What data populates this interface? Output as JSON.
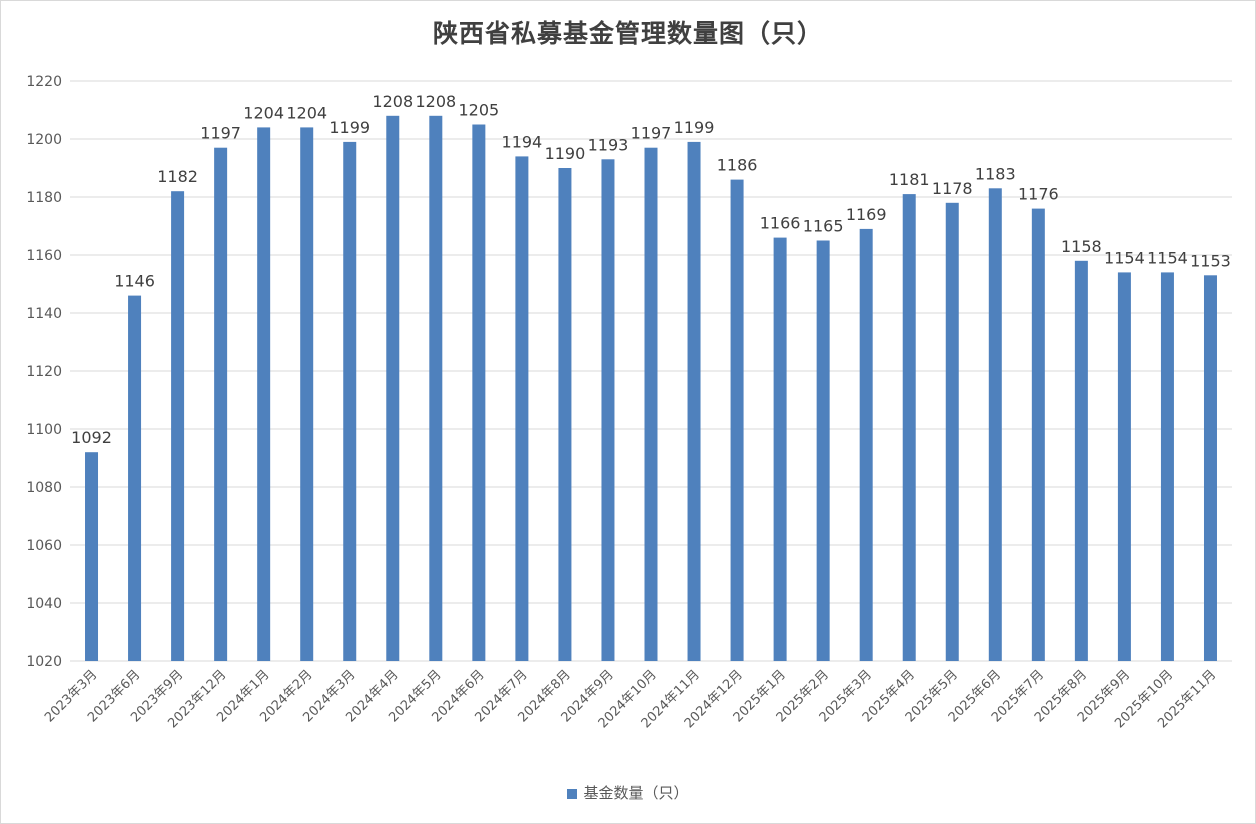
{
  "chart_data": {
    "type": "bar",
    "title": "陕西省私募基金管理数量图（只）",
    "categories": [
      "2023年3月",
      "2023年6月",
      "2023年9月",
      "2023年12月",
      "2024年1月",
      "2024年2月",
      "2024年3月",
      "2024年4月",
      "2024年5月",
      "2024年6月",
      "2024年7月",
      "2024年8月",
      "2024年9月",
      "2024年10月",
      "2024年11月",
      "2024年12月",
      "2025年1月",
      "2025年2月",
      "2025年3月",
      "2025年4月",
      "2025年5月",
      "2025年6月",
      "2025年7月",
      "2025年8月",
      "2025年9月",
      "2025年10月",
      "2025年11月"
    ],
    "series": [
      {
        "name": "基金数量（只）",
        "values": [
          1092,
          1146,
          1182,
          1197,
          1204,
          1204,
          1199,
          1208,
          1208,
          1205,
          1194,
          1190,
          1193,
          1197,
          1199,
          1186,
          1166,
          1165,
          1169,
          1181,
          1178,
          1183,
          1176,
          1158,
          1154,
          1154,
          1153
        ]
      }
    ],
    "ylim": [
      1020,
      1220
    ],
    "yticks": [
      1020,
      1040,
      1060,
      1080,
      1100,
      1120,
      1140,
      1160,
      1180,
      1200,
      1220
    ],
    "grid": true,
    "legend": "bottom",
    "colors": {
      "bar": "#4f81bd",
      "grid": "#d9d9d9",
      "text": "#595959"
    }
  }
}
